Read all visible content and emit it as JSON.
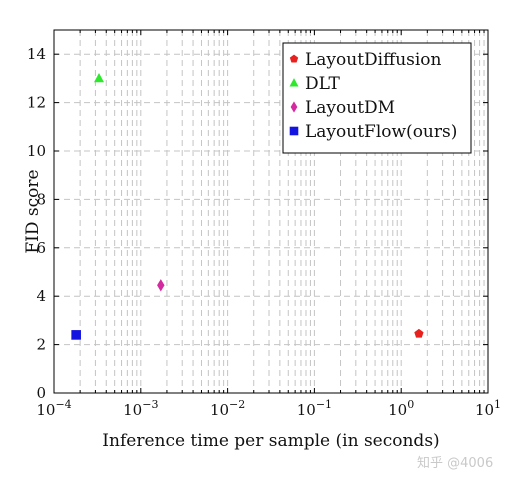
{
  "chart_data": {
    "type": "scatter",
    "title": "",
    "xlabel": "Inference time per sample (in seconds)",
    "ylabel": "FID score",
    "xscale": "log",
    "xlim": [
      0.0001,
      10
    ],
    "ylim": [
      0,
      15
    ],
    "x_ticks": [
      {
        "base": "10",
        "exp": "−4"
      },
      {
        "base": "10",
        "exp": "−3"
      },
      {
        "base": "10",
        "exp": "−2"
      },
      {
        "base": "10",
        "exp": "−1"
      },
      {
        "base": "10",
        "exp": "0"
      },
      {
        "base": "10",
        "exp": "1"
      }
    ],
    "y_ticks": [
      0,
      2,
      4,
      6,
      8,
      10,
      12,
      14
    ],
    "grid": true,
    "legend_position": "top-right",
    "series": [
      {
        "name": "LayoutDiffusion",
        "marker": "pentagon",
        "color": "#e8201e",
        "x": 1.6,
        "y": 2.45
      },
      {
        "name": "DLT",
        "marker": "triangle",
        "color": "#2ee82e",
        "x": 0.00033,
        "y": 13.0
      },
      {
        "name": "LayoutDM",
        "marker": "diamond",
        "color": "#d42aa0",
        "x": 0.0017,
        "y": 4.45
      },
      {
        "name": "LayoutFlow(ours)",
        "marker": "square",
        "color": "#1414e0",
        "x": 0.00018,
        "y": 2.4
      }
    ]
  },
  "watermark": "知乎 @4006"
}
